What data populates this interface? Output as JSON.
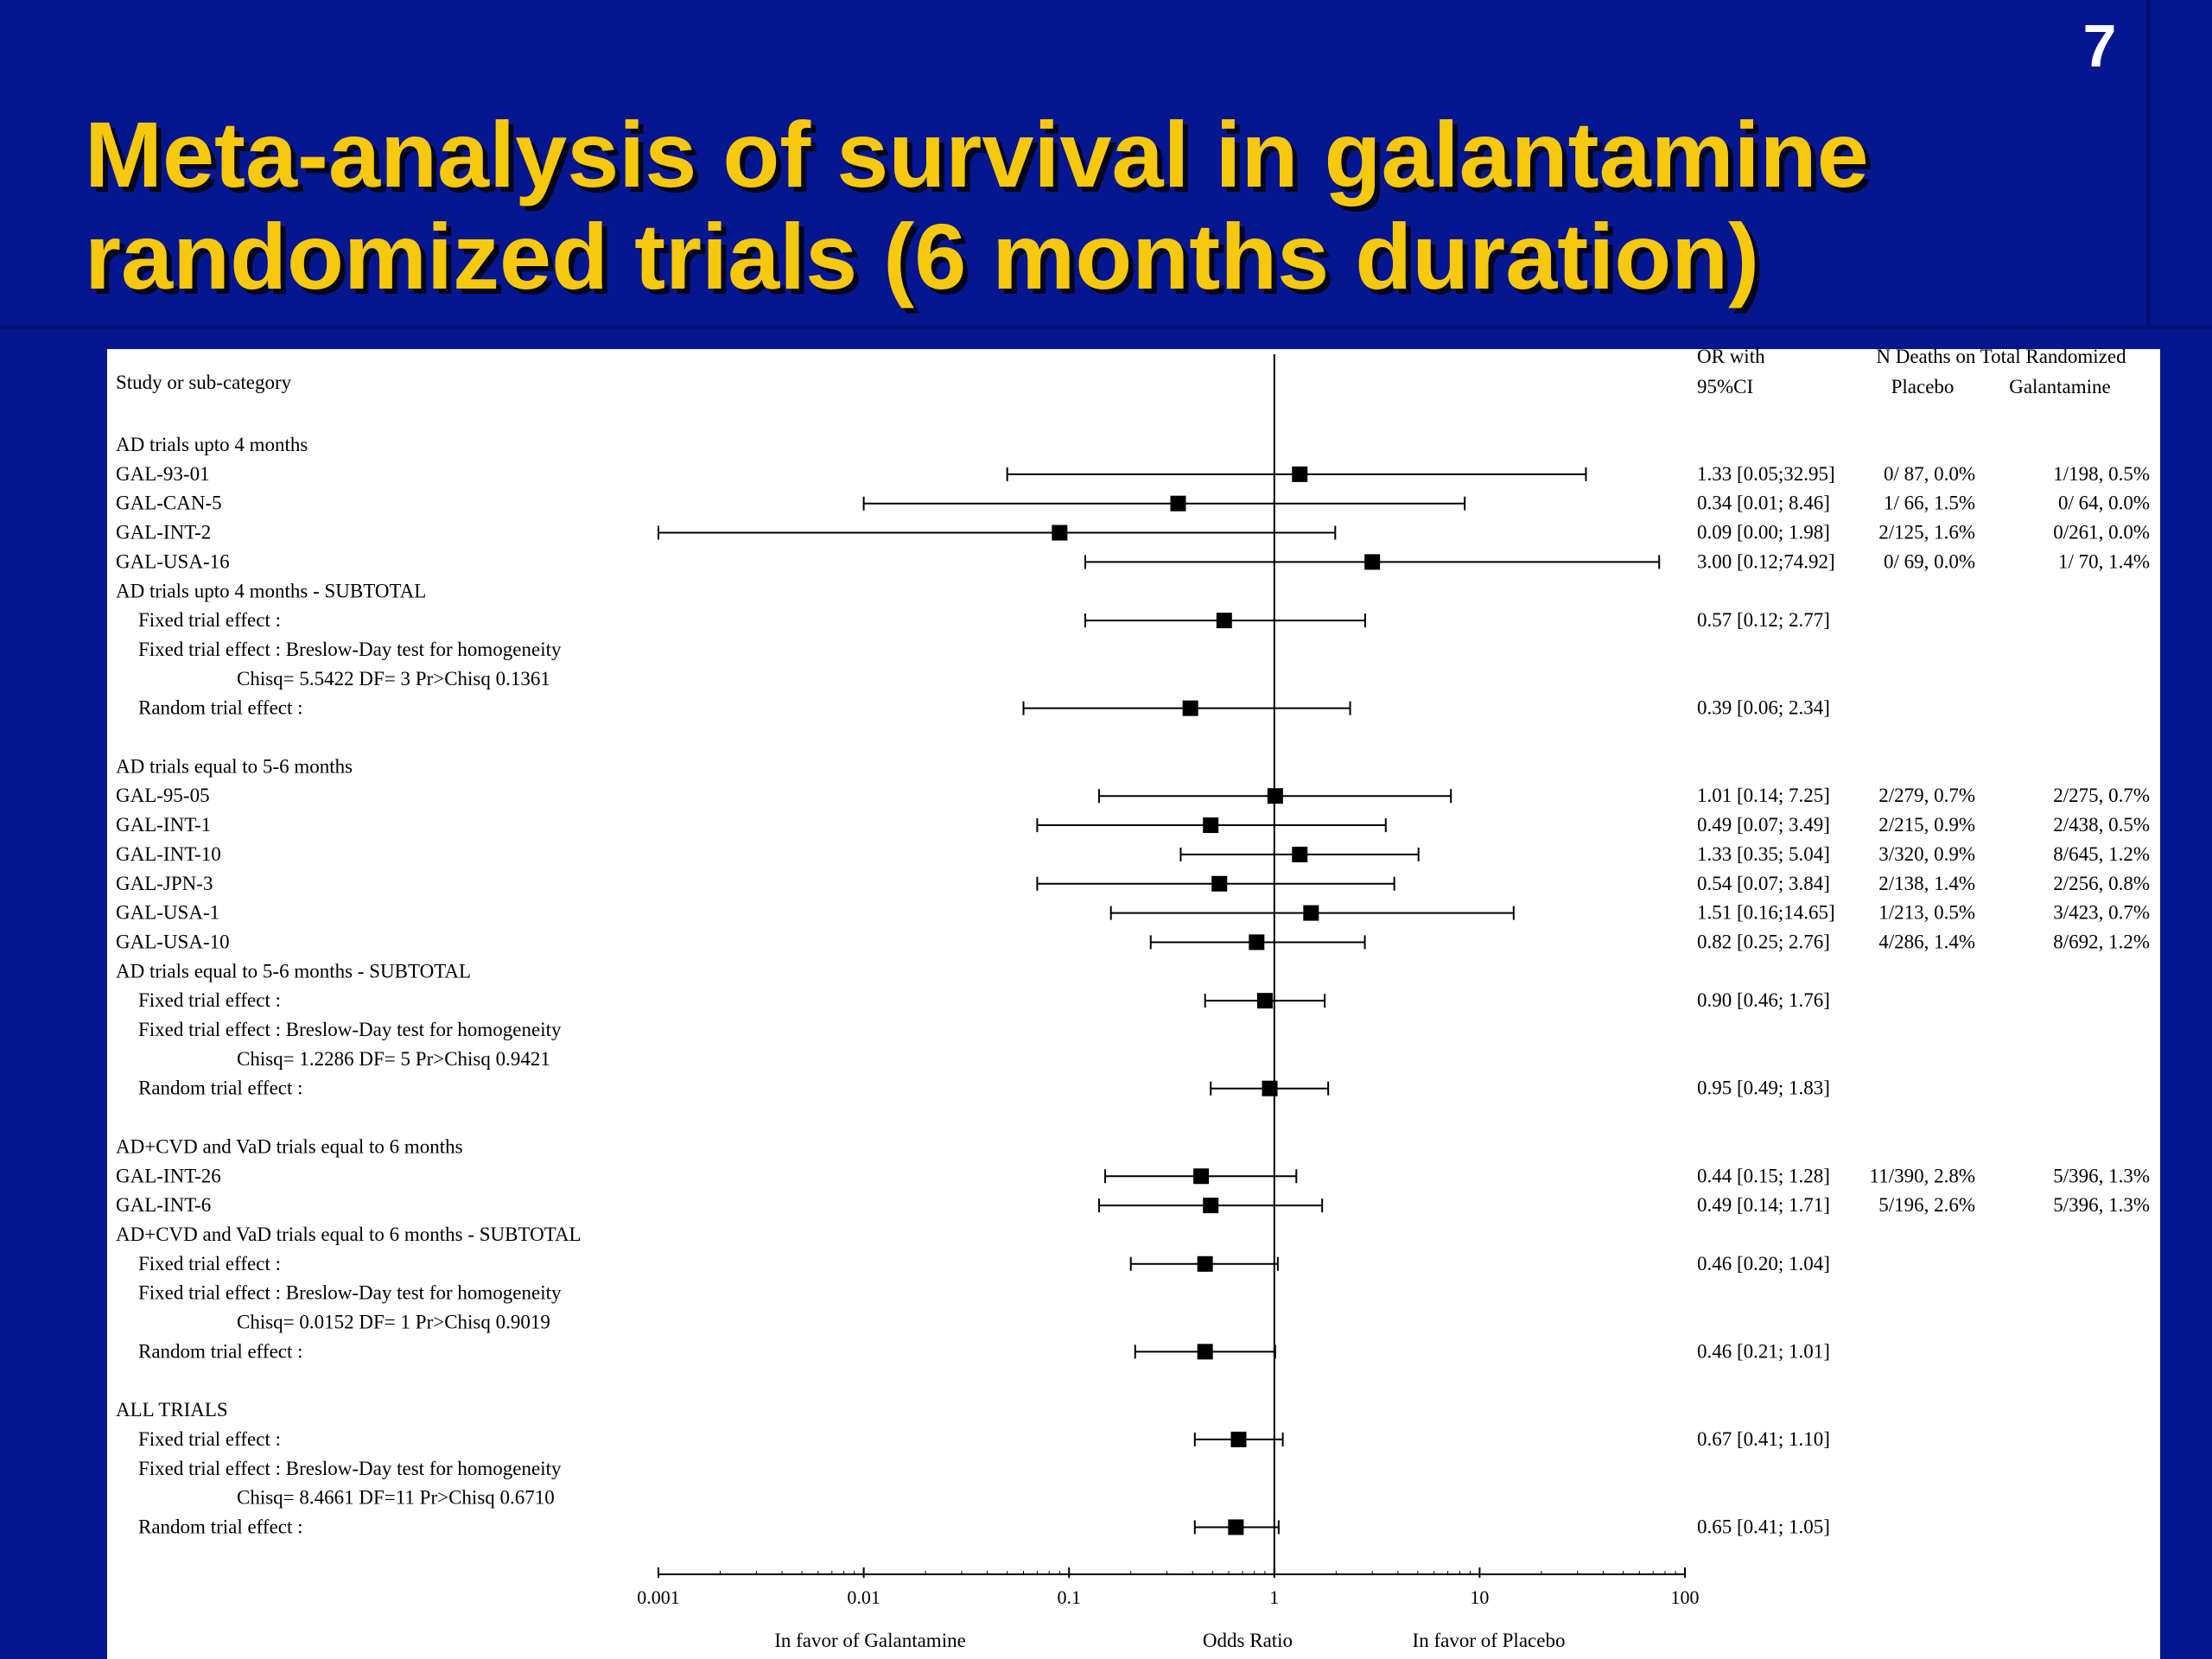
{
  "slide_number": "7",
  "title": "Meta-analysis of survival in galantamine randomized trials (6 months duration)",
  "colors": {
    "background": "#05168f",
    "title": "#f6c80e",
    "panel": "#ffffff"
  },
  "chart_data": {
    "type": "forest",
    "x_scale": "log",
    "xlim": [
      0.001,
      100
    ],
    "reference_line": 1,
    "ticks": [
      {
        "value": 0.001,
        "label": "0.001"
      },
      {
        "value": 0.01,
        "label": "0.01"
      },
      {
        "value": 0.1,
        "label": "0.1"
      },
      {
        "value": 1,
        "label": "1"
      },
      {
        "value": 10,
        "label": "10"
      },
      {
        "value": 100,
        "label": "100"
      }
    ],
    "xlabel": "Odds Ratio",
    "left_caption": "In favor of Galantamine",
    "right_caption": "In favor of Placebo",
    "column_headers": {
      "study": "Study or sub-category",
      "or_line1": "OR with",
      "or_line2": "95%CI",
      "deaths": "N Deaths on Total Randomized",
      "placebo": "Placebo",
      "galantamine": "Galantamine"
    },
    "rows": [
      {
        "label": "AD trials upto 4 months"
      },
      {
        "label": "GAL-93-01",
        "or": 1.33,
        "lo": 0.05,
        "hi": 32.95,
        "ci": "1.33 [0.05;32.95]",
        "placebo": "0/ 87, 0.0%",
        "galantamine": "1/198, 0.5%"
      },
      {
        "label": "GAL-CAN-5",
        "or": 0.34,
        "lo": 0.01,
        "hi": 8.46,
        "ci": "0.34 [0.01; 8.46]",
        "placebo": "1/ 66, 1.5%",
        "galantamine": "0/ 64, 0.0%"
      },
      {
        "label": "GAL-INT-2",
        "or": 0.09,
        "lo": 0.0,
        "hi": 1.98,
        "ci": "0.09 [0.00; 1.98]",
        "placebo": "2/125, 1.6%",
        "galantamine": "0/261, 0.0%"
      },
      {
        "label": "GAL-USA-16",
        "or": 3.0,
        "lo": 0.12,
        "hi": 74.92,
        "ci": "3.00 [0.12;74.92]",
        "placebo": "0/ 69, 0.0%",
        "galantamine": "1/ 70, 1.4%"
      },
      {
        "label": "AD trials upto 4 months - SUBTOTAL"
      },
      {
        "label": "Fixed trial effect :",
        "indent": 1,
        "or": 0.57,
        "lo": 0.12,
        "hi": 2.77,
        "ci": "0.57 [0.12; 2.77]"
      },
      {
        "label": "Fixed trial effect : Breslow-Day test for homogeneity",
        "indent": 1
      },
      {
        "label": "Chisq= 5.5422 DF= 3 Pr>Chisq 0.1361",
        "indent": 2
      },
      {
        "label": "Random trial effect :",
        "indent": 1,
        "or": 0.39,
        "lo": 0.06,
        "hi": 2.34,
        "ci": "0.39 [0.06; 2.34]"
      },
      {
        "label": ""
      },
      {
        "label": "AD trials equal to 5-6 months"
      },
      {
        "label": "GAL-95-05",
        "or": 1.01,
        "lo": 0.14,
        "hi": 7.25,
        "ci": "1.01 [0.14; 7.25]",
        "placebo": "2/279, 0.7%",
        "galantamine": "2/275, 0.7%"
      },
      {
        "label": "GAL-INT-1",
        "or": 0.49,
        "lo": 0.07,
        "hi": 3.49,
        "ci": "0.49 [0.07; 3.49]",
        "placebo": "2/215, 0.9%",
        "galantamine": "2/438, 0.5%"
      },
      {
        "label": "GAL-INT-10",
        "or": 1.33,
        "lo": 0.35,
        "hi": 5.04,
        "ci": "1.33 [0.35; 5.04]",
        "placebo": "3/320, 0.9%",
        "galantamine": "8/645, 1.2%"
      },
      {
        "label": "GAL-JPN-3",
        "or": 0.54,
        "lo": 0.07,
        "hi": 3.84,
        "ci": "0.54 [0.07; 3.84]",
        "placebo": "2/138, 1.4%",
        "galantamine": "2/256, 0.8%"
      },
      {
        "label": "GAL-USA-1",
        "or": 1.51,
        "lo": 0.16,
        "hi": 14.65,
        "ci": "1.51 [0.16;14.65]",
        "placebo": "1/213, 0.5%",
        "galantamine": "3/423, 0.7%"
      },
      {
        "label": "GAL-USA-10",
        "or": 0.82,
        "lo": 0.25,
        "hi": 2.76,
        "ci": "0.82 [0.25; 2.76]",
        "placebo": "4/286, 1.4%",
        "galantamine": "8/692, 1.2%"
      },
      {
        "label": "AD trials equal to 5-6 months - SUBTOTAL"
      },
      {
        "label": "Fixed trial effect :",
        "indent": 1,
        "or": 0.9,
        "lo": 0.46,
        "hi": 1.76,
        "ci": "0.90 [0.46; 1.76]"
      },
      {
        "label": "Fixed trial effect : Breslow-Day test for homogeneity",
        "indent": 1
      },
      {
        "label": "Chisq= 1.2286 DF= 5 Pr>Chisq 0.9421",
        "indent": 2
      },
      {
        "label": "Random trial effect :",
        "indent": 1,
        "or": 0.95,
        "lo": 0.49,
        "hi": 1.83,
        "ci": "0.95 [0.49; 1.83]"
      },
      {
        "label": ""
      },
      {
        "label": "AD+CVD and VaD trials equal to 6 months"
      },
      {
        "label": "GAL-INT-26",
        "or": 0.44,
        "lo": 0.15,
        "hi": 1.28,
        "ci": "0.44 [0.15; 1.28]",
        "placebo": "11/390, 2.8%",
        "galantamine": "5/396, 1.3%"
      },
      {
        "label": "GAL-INT-6",
        "or": 0.49,
        "lo": 0.14,
        "hi": 1.71,
        "ci": "0.49 [0.14; 1.71]",
        "placebo": "5/196, 2.6%",
        "galantamine": "5/396, 1.3%"
      },
      {
        "label": "AD+CVD and VaD trials equal to 6 months - SUBTOTAL"
      },
      {
        "label": "Fixed trial effect :",
        "indent": 1,
        "or": 0.46,
        "lo": 0.2,
        "hi": 1.04,
        "ci": "0.46 [0.20; 1.04]"
      },
      {
        "label": "Fixed trial effect : Breslow-Day test for homogeneity",
        "indent": 1
      },
      {
        "label": "Chisq= 0.0152 DF= 1 Pr>Chisq 0.9019",
        "indent": 2
      },
      {
        "label": "Random trial effect :",
        "indent": 1,
        "or": 0.46,
        "lo": 0.21,
        "hi": 1.01,
        "ci": "0.46 [0.21; 1.01]"
      },
      {
        "label": ""
      },
      {
        "label": "ALL TRIALS"
      },
      {
        "label": "Fixed trial effect :",
        "indent": 1,
        "or": 0.67,
        "lo": 0.41,
        "hi": 1.1,
        "ci": "0.67 [0.41; 1.10]"
      },
      {
        "label": "Fixed trial effect : Breslow-Day test for homogeneity",
        "indent": 1
      },
      {
        "label": "Chisq= 8.4661 DF=11 Pr>Chisq 0.6710",
        "indent": 2
      },
      {
        "label": "Random trial effect :",
        "indent": 1,
        "or": 0.65,
        "lo": 0.41,
        "hi": 1.05,
        "ci": "0.65 [0.41; 1.05]"
      }
    ]
  }
}
